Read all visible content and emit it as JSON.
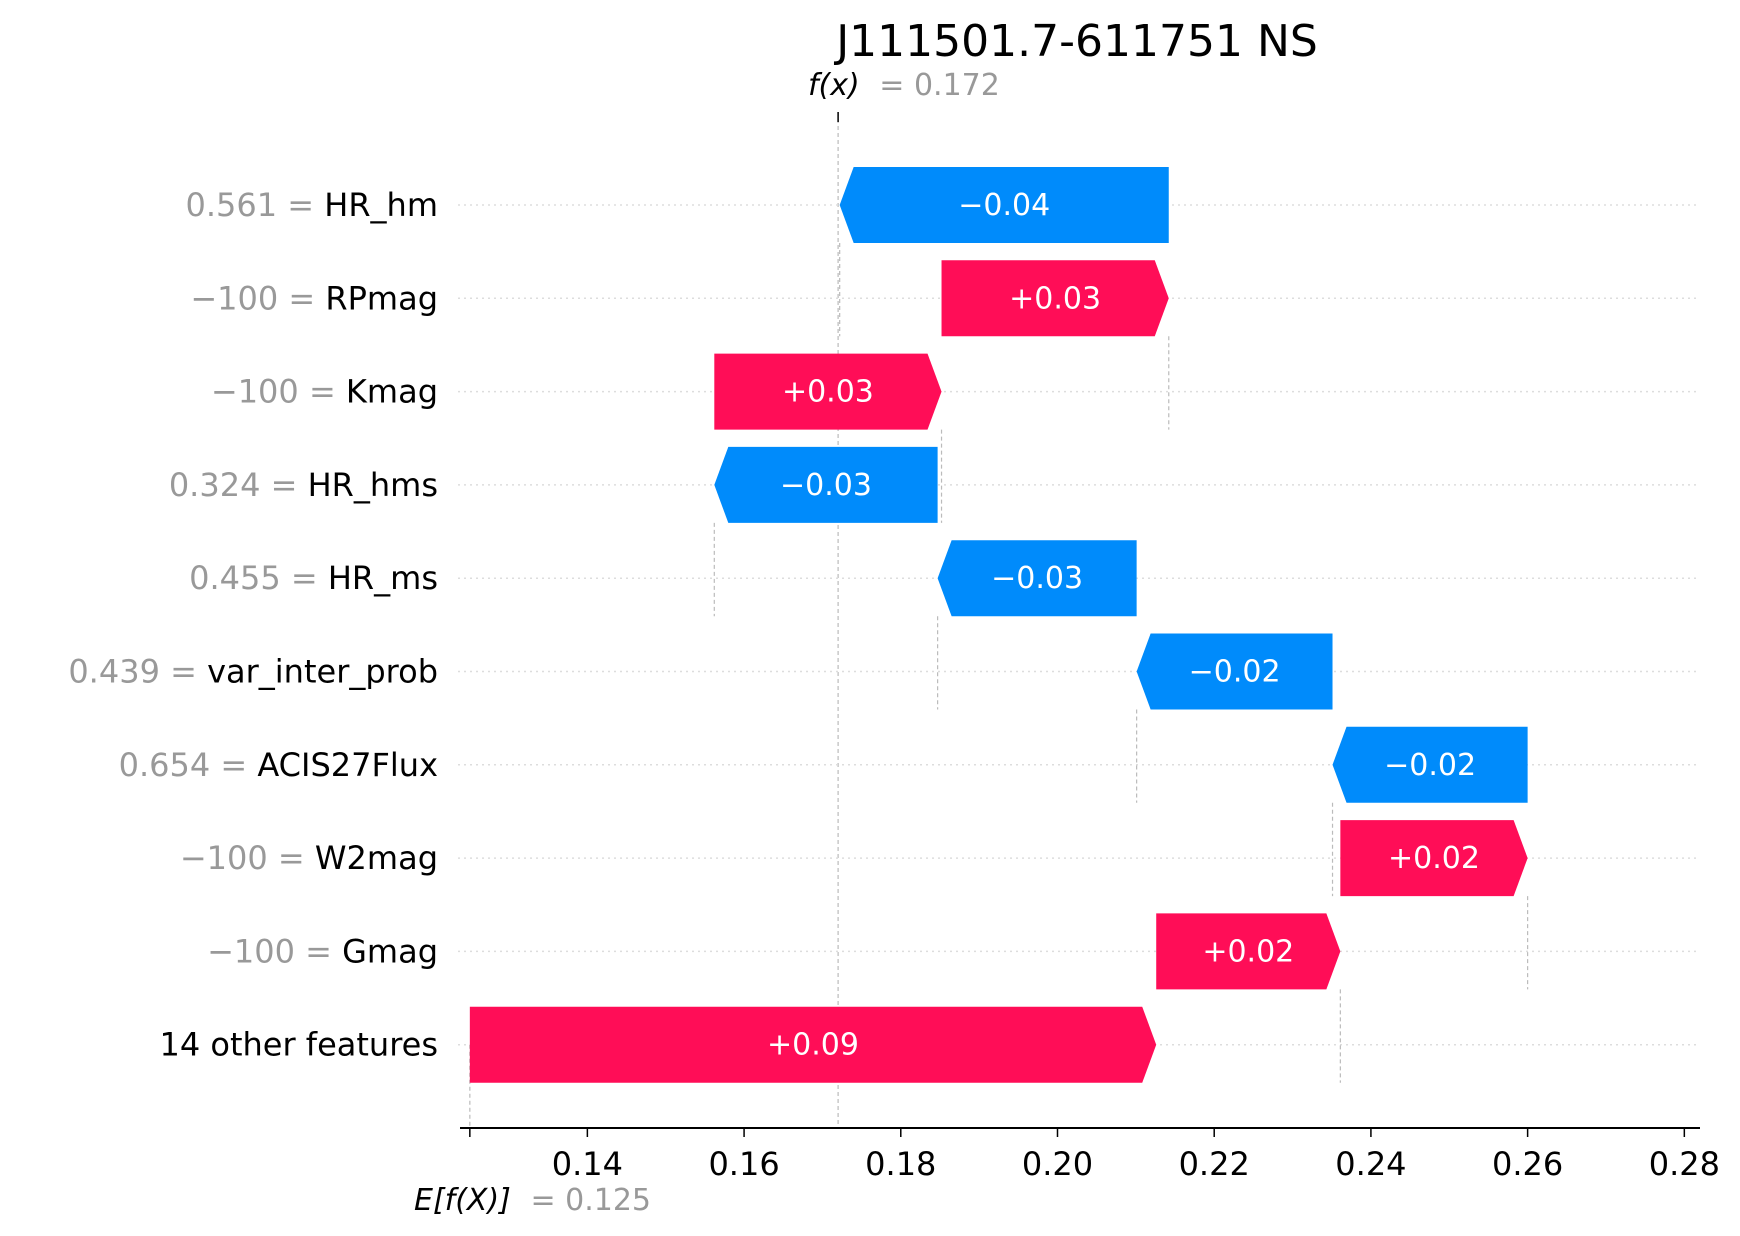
{
  "chart_data": {
    "type": "waterfall",
    "title": "J111501.7-611751 NS",
    "fx_label": "f(x)",
    "fx_value_text": "= 0.172",
    "fx_value": 0.172,
    "efx_label": "E[f(X)]",
    "efx_value_text": "= 0.125",
    "base_value": 0.125,
    "xlim": [
      0.124,
      0.282
    ],
    "xticks": [
      0.14,
      0.16,
      0.18,
      0.2,
      0.22,
      0.24,
      0.26,
      0.28
    ],
    "xtick_labels": [
      "0.14",
      "0.16",
      "0.18",
      "0.20",
      "0.22",
      "0.24",
      "0.26",
      "0.28"
    ],
    "colors": {
      "positive": "#ff0d57",
      "negative": "#008bfb",
      "feature_value": "#999999",
      "axis": "#000000"
    },
    "features": [
      {
        "value": "0.561 =",
        "name": "HR_hm",
        "start": 0.2142,
        "end": 0.1722,
        "label": "−0.04"
      },
      {
        "value": "−100 =",
        "name": "RPmag",
        "start": 0.1852,
        "end": 0.2142,
        "label": "+0.03"
      },
      {
        "value": "−100 =",
        "name": "Kmag",
        "start": 0.1562,
        "end": 0.1852,
        "label": "+0.03"
      },
      {
        "value": "0.324 =",
        "name": "HR_hms",
        "start": 0.1847,
        "end": 0.1562,
        "label": "−0.03"
      },
      {
        "value": "0.455 =",
        "name": "HR_ms",
        "start": 0.2101,
        "end": 0.1847,
        "label": "−0.03"
      },
      {
        "value": "0.439 =",
        "name": "var_inter_prob",
        "start": 0.2351,
        "end": 0.2101,
        "label": "−0.02"
      },
      {
        "value": "0.654 =",
        "name": "ACIS27Flux",
        "start": 0.26,
        "end": 0.2351,
        "label": "−0.02"
      },
      {
        "value": "−100 =",
        "name": "W2mag",
        "start": 0.2361,
        "end": 0.26,
        "label": "+0.02"
      },
      {
        "value": "−100 =",
        "name": "Gmag",
        "start": 0.2126,
        "end": 0.2361,
        "label": "+0.02"
      },
      {
        "value": "",
        "name": "14 other features",
        "start": 0.125,
        "end": 0.2126,
        "label": "+0.09"
      }
    ]
  }
}
